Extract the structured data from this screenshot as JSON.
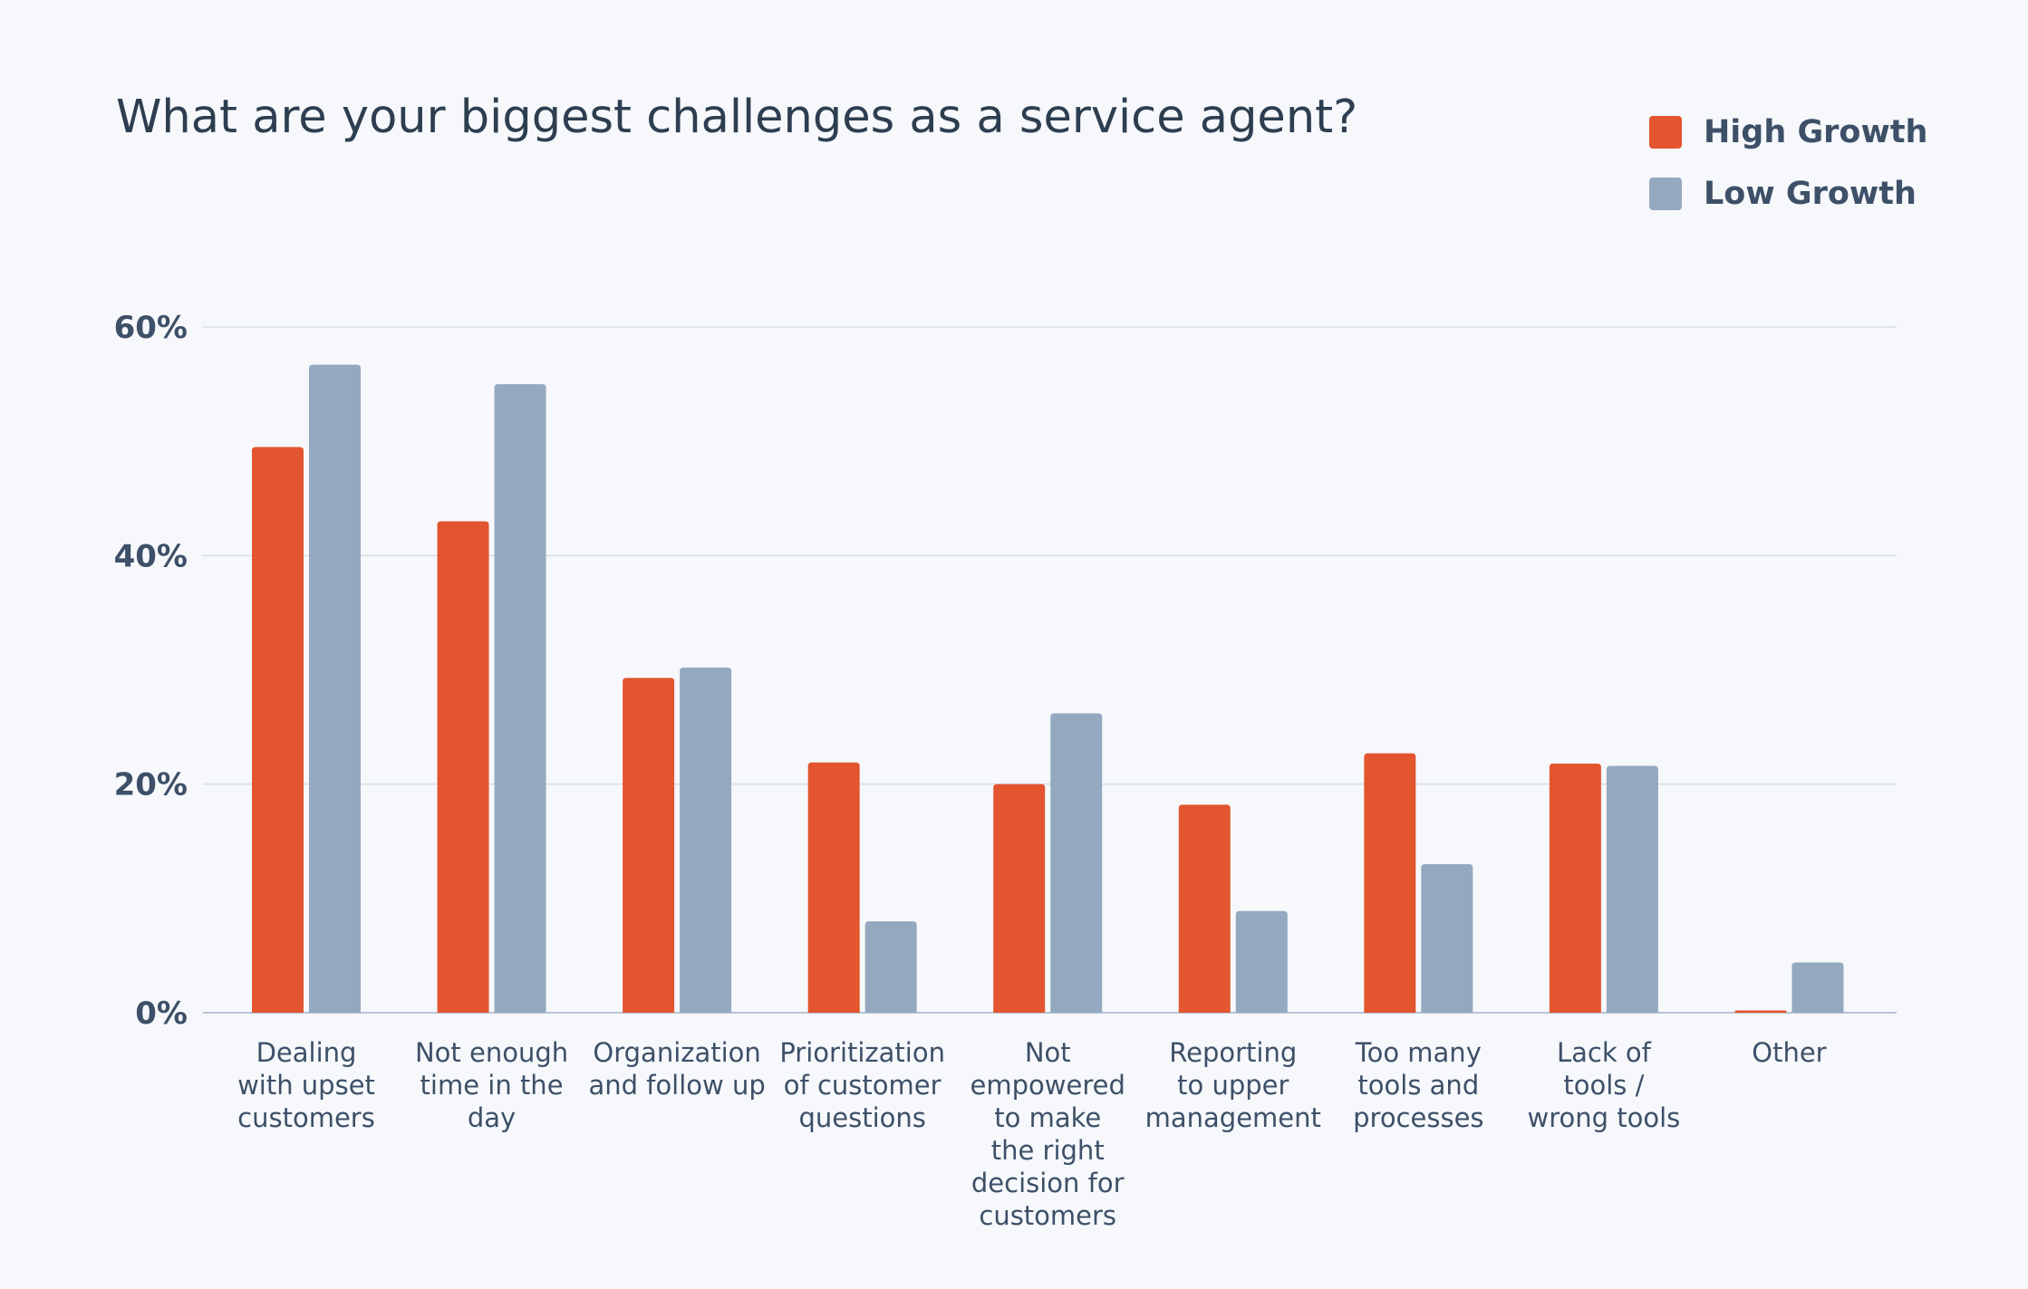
{
  "chart_data": {
    "type": "bar",
    "title": "What are your biggest challenges as a service agent?",
    "xlabel": "",
    "ylabel": "",
    "ylim": [
      0,
      60
    ],
    "yticks": [
      "0%",
      "20%",
      "40%",
      "60%"
    ],
    "categories": [
      "Dealing with upset customers",
      "Not enough time in the day",
      "Organization and follow up",
      "Prioritization of customer questions",
      "Not empowered to make the right decision for customers",
      "Reporting to upper management",
      "Too many tools and processes",
      "Lack of tools / wrong tools",
      "Other"
    ],
    "category_lines": [
      [
        "Dealing",
        "with upset",
        "customers"
      ],
      [
        "Not enough",
        "time in the",
        "day"
      ],
      [
        "Organization",
        "and follow up"
      ],
      [
        "Prioritization",
        "of customer",
        "questions"
      ],
      [
        "Not",
        "empowered",
        "to make",
        "the right",
        "decision for",
        "customers"
      ],
      [
        "Reporting",
        "to upper",
        "management"
      ],
      [
        "Too many",
        "tools and",
        "processes"
      ],
      [
        "Lack of",
        "tools /",
        "wrong tools"
      ],
      [
        "Other"
      ]
    ],
    "series": [
      {
        "name": "High Growth",
        "color": "#e2552f",
        "values": [
          49.5,
          43,
          29.3,
          21.9,
          20,
          18.2,
          22.7,
          21.8,
          0.2
        ]
      },
      {
        "name": "Low Growth",
        "color": "#94a9c0",
        "values": [
          56.7,
          55,
          30.2,
          8,
          26.2,
          8.9,
          13,
          21.6,
          4.4
        ]
      }
    ],
    "grid": true,
    "legend_position": "top-right"
  }
}
